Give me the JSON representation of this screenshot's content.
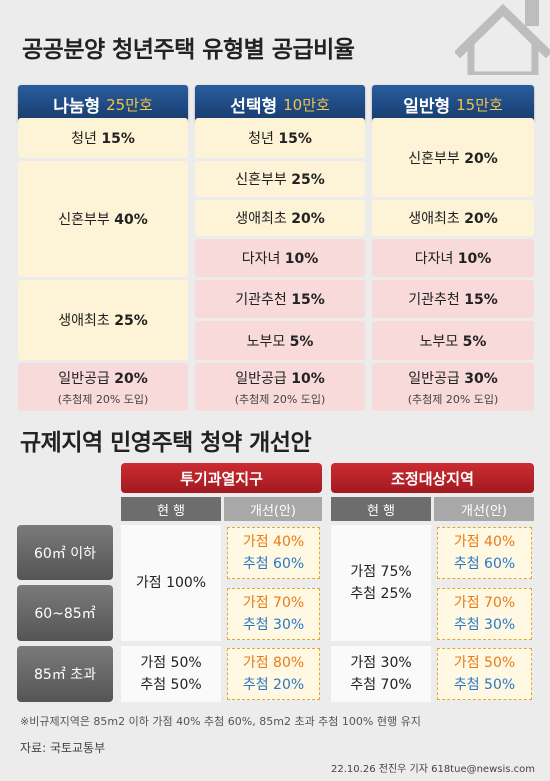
{
  "title": "공공분양 청년주택 유형별 공급비율",
  "supply": {
    "columns": [
      {
        "name": "나눔형",
        "amount": "25만호"
      },
      {
        "name": "선택형",
        "amount": "10만호"
      },
      {
        "name": "일반형",
        "amount": "15만호"
      }
    ],
    "col1": [
      {
        "label": "청년",
        "value": "15%"
      },
      {
        "label": "신혼부부",
        "value": "40%"
      },
      {
        "label": "생애최초",
        "value": "25%"
      },
      {
        "label": "일반공급",
        "value": "20%",
        "note": "(추첨제 20% 도입)"
      }
    ],
    "col2": [
      {
        "label": "청년",
        "value": "15%"
      },
      {
        "label": "신혼부부",
        "value": "25%"
      },
      {
        "label": "생애최초",
        "value": "20%"
      },
      {
        "label": "다자녀",
        "value": "10%"
      },
      {
        "label": "기관추천",
        "value": "15%"
      },
      {
        "label": "노부모",
        "value": "5%"
      },
      {
        "label": "일반공급",
        "value": "10%",
        "note": "(추첨제 20% 도입)"
      }
    ],
    "col3": [
      {
        "label": "신혼부부",
        "value": "20%"
      },
      {
        "label": "생애최초",
        "value": "20%"
      },
      {
        "label": "다자녀",
        "value": "10%"
      },
      {
        "label": "기관추천",
        "value": "15%"
      },
      {
        "label": "노부모",
        "value": "5%"
      },
      {
        "label": "일반공급",
        "value": "30%",
        "note": "(추첨제 20% 도입)"
      }
    ]
  },
  "subtitle": "규제지역 민영주택 청약 개선안",
  "regulation": {
    "regions": [
      "투기과열지구",
      "조정대상지역"
    ],
    "current_label": "현 행",
    "improved_label": "개선(안)",
    "rows": [
      "60㎡ 이하",
      "60~85㎡",
      "85㎡ 초과"
    ],
    "r1": {
      "cur_top": "가점 100%",
      "cur_bottom": [
        "가점 50%",
        "추첨 50%"
      ],
      "imp": [
        [
          "가점 40%",
          "추첨 60%"
        ],
        [
          "가점 70%",
          "추첨 30%"
        ],
        [
          "가점 80%",
          "추첨 20%"
        ]
      ]
    },
    "r2": {
      "cur_top": [
        "가점 75%",
        "추첨 25%"
      ],
      "cur_bottom": [
        "가점 30%",
        "추첨 70%"
      ],
      "imp": [
        [
          "가점 40%",
          "추첨 60%"
        ],
        [
          "가점 70%",
          "추첨 30%"
        ],
        [
          "가점 50%",
          "추첨 50%"
        ]
      ]
    }
  },
  "footnote": "※비규제지역은 85m2 이하 가점 40% 추첨 60%, 85m2 초과 추첨 100% 현행 유지",
  "source": "자료: 국토교통부",
  "credit": "22.10.26 전진우 기자 618tue@newsis.com",
  "colors": {
    "navy": "#1f4a84",
    "red": "#b82228",
    "yellow": "#fdf3d6",
    "pink": "#f8dadb",
    "orange": "#e77b16",
    "blue": "#2a78c4"
  }
}
